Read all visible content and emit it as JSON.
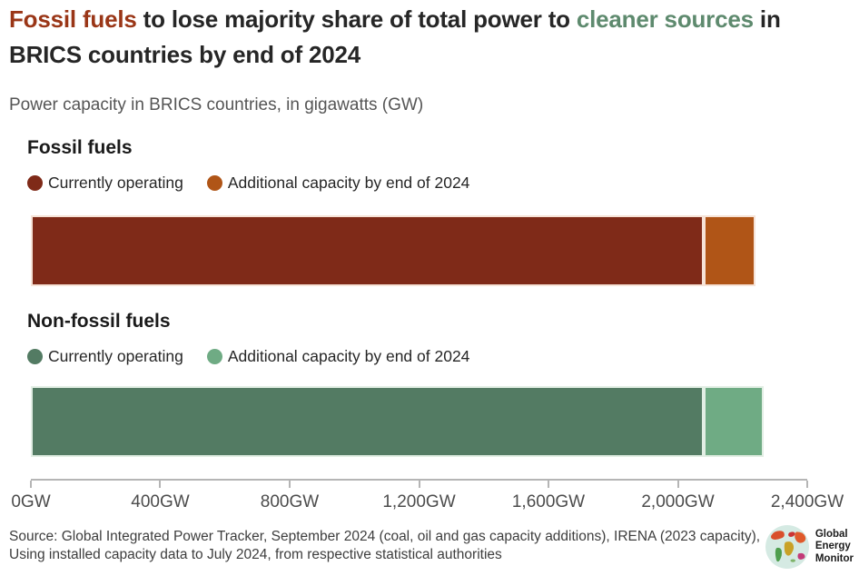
{
  "page": {
    "title_parts": [
      {
        "text": "Fossil fuels",
        "color": "#9a3617"
      },
      {
        "text": " to lose majority share of total power to ",
        "color": "#262626"
      },
      {
        "text": "cleaner sources",
        "color": "#5e8a6e"
      },
      {
        "text": " in BRICS countries by end of 2024",
        "color": "#262626"
      }
    ],
    "subtitle": "Power capacity in BRICS countries, in gigawatts (GW)"
  },
  "chart_data": {
    "type": "bar",
    "orientation": "horizontal",
    "unit": "GW",
    "xlim": [
      0,
      2400
    ],
    "x_tick_values": [
      0,
      400,
      800,
      1200,
      1600,
      2000,
      2400
    ],
    "x_tick_labels": [
      "0GW",
      "400GW",
      "800GW",
      "1,200GW",
      "1,600GW",
      "2,000GW",
      "2,400GW"
    ],
    "grid": false,
    "groups": [
      {
        "label": "Fossil fuels",
        "segments": [
          {
            "name": "Currently operating",
            "color": "#7f2a18",
            "value": 2080
          },
          {
            "name": "Additional capacity by end of 2024",
            "color": "#b05517",
            "value": 160
          }
        ]
      },
      {
        "label": "Non-fossil fuels",
        "segments": [
          {
            "name": "Currently operating",
            "color": "#537b63",
            "value": 2080
          },
          {
            "name": "Additional capacity by end of 2024",
            "color": "#6fab84",
            "value": 185
          }
        ]
      }
    ]
  },
  "footer": {
    "source": "Source: Global Integrated Power Tracker, September 2024 (coal, oil and gas capacity additions), IRENA (2023 capacity), Using installed capacity data to July 2024, from respective statistical authorities",
    "logo_lines": [
      "Global",
      "Energy",
      "Monitor"
    ]
  }
}
